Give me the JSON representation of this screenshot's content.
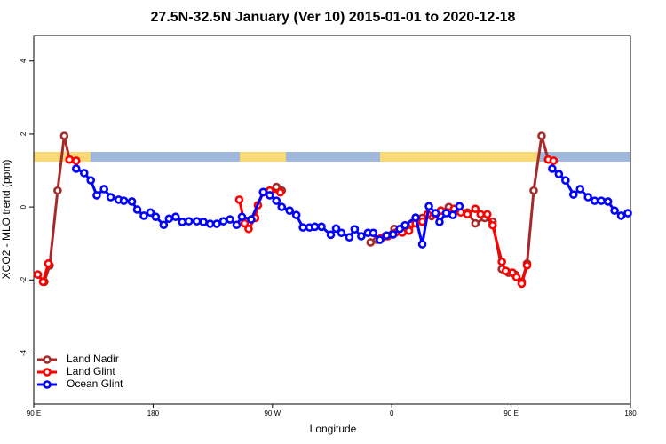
{
  "chart_data": {
    "type": "line",
    "title": "27.5N-32.5N January (Ver 10)   2015-01-01 to 2020-12-18",
    "xlabel": "Longitude",
    "ylabel": "XCO2 - MLO trend (ppm)",
    "xlim": [
      90,
      540
    ],
    "xticks": [
      {
        "value": 90,
        "label": "90 E"
      },
      {
        "value": 180,
        "label": "180"
      },
      {
        "value": 270,
        "label": "90 W"
      },
      {
        "value": 360,
        "label": "0"
      },
      {
        "value": 450,
        "label": "90 E"
      },
      {
        "value": 540,
        "label": "180"
      }
    ],
    "ylim": [
      -5.4,
      4.7
    ],
    "yticks": [
      -4,
      -2,
      0,
      2,
      4
    ],
    "legend": "lower left",
    "series": [
      {
        "name": "Land Nadir",
        "color": "#a52a2a",
        "x": [
          93,
          98,
          102,
          108,
          113,
          117,
          190,
          263,
          268,
          273,
          277,
          310,
          344,
          349,
          355,
          362,
          368,
          375,
          383,
          390,
          397,
          403,
          410,
          417,
          423,
          430,
          436,
          443,
          448,
          453,
          458,
          462,
          467,
          473,
          478
        ],
        "values": [
          -1.85,
          -2.05,
          -1.6,
          0.45,
          1.95,
          1.3,
          null,
          0.4,
          0.45,
          0.55,
          0.45,
          null,
          -0.97,
          -0.9,
          -0.8,
          -0.6,
          -0.65,
          -0.45,
          -0.3,
          -0.25,
          -0.1,
          0,
          -0.1,
          -0.15,
          -0.45,
          -0.3,
          -0.4,
          -1.7,
          -1.8,
          -1.85,
          -2.05,
          -1.55,
          0.45,
          1.95,
          1.3
        ]
      },
      {
        "name": "Land Glint",
        "color": "#ff0000",
        "x": [
          93,
          97,
          101,
          110,
          117,
          122,
          190,
          245,
          249,
          252,
          257,
          259,
          263,
          268,
          276,
          310,
          352,
          357,
          363,
          368,
          373,
          378,
          383,
          387,
          393,
          397,
          403,
          407,
          412,
          417,
          423,
          427,
          432,
          436,
          443,
          446,
          451,
          454,
          458,
          462,
          470,
          478,
          482
        ],
        "values": [
          -1.85,
          -2.05,
          -1.55,
          null,
          1.3,
          1.27,
          null,
          0.2,
          -0.45,
          -0.6,
          -0.3,
          0.05,
          0.4,
          0.45,
          0.4,
          null,
          -0.85,
          -0.8,
          -0.7,
          -0.7,
          -0.65,
          -0.45,
          -0.4,
          -0.2,
          -0.2,
          -0.1,
          -0.15,
          -0.05,
          -0.15,
          -0.2,
          -0.05,
          -0.2,
          -0.2,
          -0.5,
          -1.5,
          -1.75,
          -1.8,
          -1.92,
          -2.1,
          -1.6,
          null,
          1.3,
          1.27
        ]
      },
      {
        "name": "Ocean Glint",
        "color": "#0000ff",
        "x": [
          122,
          128,
          133,
          137.5,
          143,
          148,
          154,
          158,
          164,
          168,
          173,
          178,
          182,
          188,
          192,
          197,
          202,
          207,
          213,
          218,
          223,
          228,
          233,
          238,
          243,
          247,
          254,
          263,
          268,
          273,
          277,
          283,
          288,
          293,
          298,
          302,
          307,
          314,
          318,
          322,
          328,
          332,
          337,
          342,
          346,
          351,
          356,
          361,
          366,
          370,
          378,
          383,
          388,
          393,
          396,
          401,
          406,
          411,
          450,
          481,
          486,
          491,
          497,
          502,
          508,
          513,
          518,
          523,
          528,
          533,
          538
        ],
        "values": [
          1.05,
          0.93,
          0.73,
          0.32,
          0.49,
          0.27,
          0.2,
          0.17,
          0.15,
          -0.07,
          -0.24,
          -0.15,
          -0.27,
          -0.49,
          -0.32,
          -0.27,
          -0.41,
          -0.39,
          -0.39,
          -0.41,
          -0.46,
          -0.46,
          -0.39,
          -0.34,
          -0.49,
          -0.27,
          -0.34,
          0.41,
          0.32,
          0.17,
          0,
          -0.1,
          -0.22,
          -0.56,
          -0.56,
          -0.54,
          -0.54,
          -0.76,
          -0.59,
          -0.71,
          -0.83,
          -0.61,
          -0.8,
          -0.71,
          -0.71,
          -0.9,
          -0.78,
          -0.75,
          -0.6,
          -0.5,
          -0.29,
          -1.02,
          0.02,
          -0.17,
          -0.41,
          -0.17,
          -0.22,
          0.02,
          null,
          1.05,
          0.9,
          0.73,
          0.34,
          0.49,
          0.27,
          0.17,
          0.17,
          0.15,
          -0.1,
          -0.24,
          -0.17
        ]
      }
    ]
  }
}
